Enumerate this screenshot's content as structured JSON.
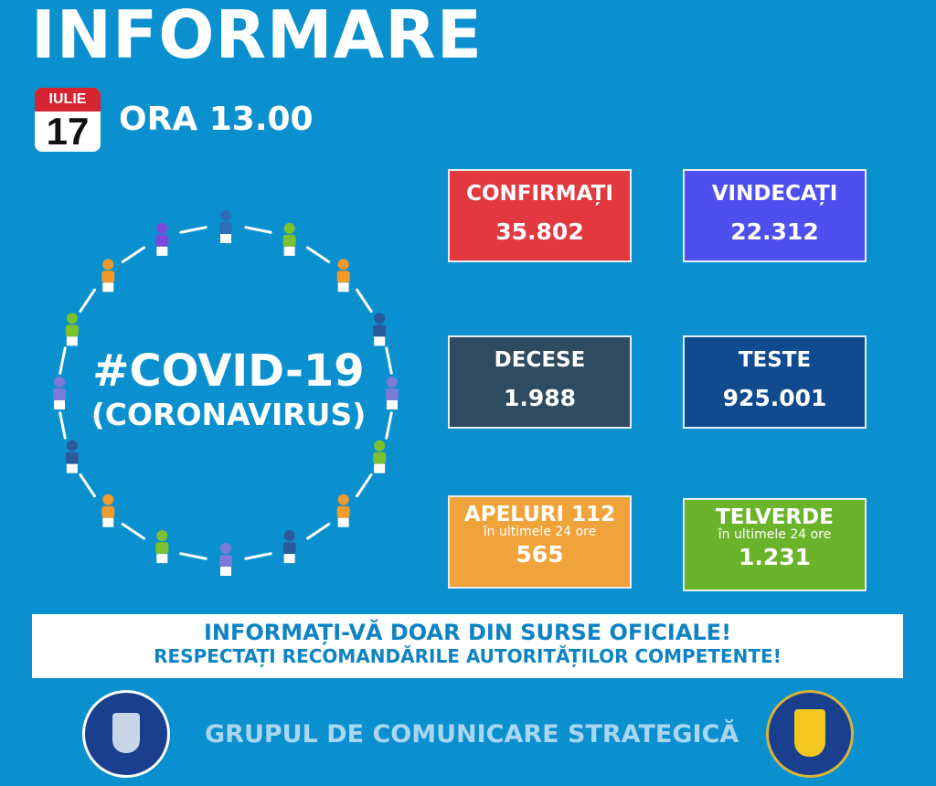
{
  "header": {
    "title": "INFORMARE",
    "month": "IULIE",
    "day": "17",
    "time": "ORA 13.00"
  },
  "center": {
    "hashtag": "#COVID-19",
    "subtitle": "(CORONAVIRUS)",
    "people_colors": [
      "#2a6fb8",
      "#7cc22f",
      "#f29a2b",
      "#2a5a9a",
      "#7a7ad8",
      "#7cc22f",
      "#f29a2b",
      "#2a5a9a",
      "#7a7ad8",
      "#7cc22f",
      "#f29a2b",
      "#2a5a9a",
      "#7a7ad8",
      "#7cc22f",
      "#f29a2b",
      "#7a4ad8"
    ]
  },
  "stats": [
    {
      "label": "CONFIRMAȚI",
      "value": "35.802",
      "color": "#e1393f"
    },
    {
      "label": "VINDECAȚI",
      "value": "22.312",
      "color": "#4f4ff0"
    },
    {
      "label": "DECESE",
      "value": "1.988",
      "color": "#2f4b60"
    },
    {
      "label": "TESTE",
      "value": "925.001",
      "color": "#0f4b8e"
    },
    {
      "label": "APELURI 112",
      "sub": "în ultimele 24 ore",
      "value": "565",
      "color": "#f0a33b"
    },
    {
      "label": "TELVERDE",
      "sub": "în ultimele 24 ore",
      "value": "1.231",
      "color": "#6bb32b"
    }
  ],
  "banner": {
    "line1": "INFORMAȚI-VĂ DOAR DIN SURSE OFICIALE!",
    "line2": "RESPECTAȚI RECOMANDĂRILE AUTORITĂȚILOR COMPETENTE!"
  },
  "footer": {
    "text": "GRUPUL DE COMUNICARE STRATEGICĂ",
    "left_seal": "GUVERNUL ROMÂNIEI",
    "right_seal": "DEPARTAMENTUL PENTRU SITUAȚII DE URGENȚĂ M.A.I."
  }
}
